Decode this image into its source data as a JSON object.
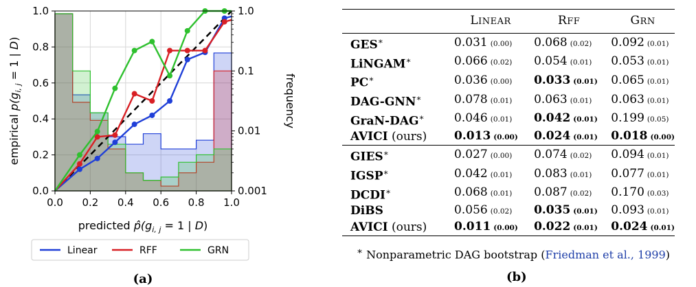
{
  "panel_a": {
    "label": "(a)",
    "legend": [
      {
        "name": "Linear",
        "color": "#1f3fd8"
      },
      {
        "name": "RFF",
        "color": "#d81f24"
      },
      {
        "name": "GRN",
        "color": "#2ec02e"
      }
    ]
  },
  "panel_b": {
    "label": "(b)",
    "columns": [
      "Linear",
      "RFF",
      "Grn"
    ],
    "group1": [
      {
        "method": "GES",
        "mark": "∗",
        "suffix": "",
        "vals": [
          [
            "0.031",
            "(0.00)",
            false
          ],
          [
            "0.068",
            "(0.02)",
            false
          ],
          [
            "0.092",
            "(0.01)",
            false
          ]
        ]
      },
      {
        "method": "LiNGAM",
        "mark": "∗",
        "suffix": "",
        "vals": [
          [
            "0.066",
            "(0.02)",
            false
          ],
          [
            "0.054",
            "(0.01)",
            false
          ],
          [
            "0.053",
            "(0.01)",
            false
          ]
        ]
      },
      {
        "method": "PC",
        "mark": "∗",
        "suffix": "",
        "vals": [
          [
            "0.036",
            "(0.00)",
            false
          ],
          [
            "0.033",
            "(0.01)",
            true
          ],
          [
            "0.065",
            "(0.01)",
            false
          ]
        ]
      },
      {
        "method": "DAG-GNN",
        "mark": "∗",
        "suffix": "",
        "vals": [
          [
            "0.078",
            "(0.01)",
            false
          ],
          [
            "0.063",
            "(0.01)",
            false
          ],
          [
            "0.063",
            "(0.01)",
            false
          ]
        ]
      },
      {
        "method": "GraN-DAG",
        "mark": "∗",
        "suffix": "",
        "vals": [
          [
            "0.046",
            "(0.01)",
            false
          ],
          [
            "0.042",
            "(0.01)",
            true
          ],
          [
            "0.199",
            "(0.05)",
            false
          ]
        ]
      },
      {
        "method": "AVICI",
        "mark": "",
        "suffix": " (ours)",
        "vals": [
          [
            "0.013",
            "(0.00)",
            true
          ],
          [
            "0.024",
            "(0.01)",
            true
          ],
          [
            "0.018",
            "(0.00)",
            true
          ]
        ]
      }
    ],
    "group2": [
      {
        "method": "GIES",
        "mark": "∗",
        "suffix": "",
        "vals": [
          [
            "0.027",
            "(0.00)",
            false
          ],
          [
            "0.074",
            "(0.02)",
            false
          ],
          [
            "0.094",
            "(0.01)",
            false
          ]
        ]
      },
      {
        "method": "IGSP",
        "mark": "∗",
        "suffix": "",
        "vals": [
          [
            "0.042",
            "(0.01)",
            false
          ],
          [
            "0.083",
            "(0.01)",
            false
          ],
          [
            "0.077",
            "(0.01)",
            false
          ]
        ]
      },
      {
        "method": "DCDI",
        "mark": "∗",
        "suffix": "",
        "vals": [
          [
            "0.068",
            "(0.01)",
            false
          ],
          [
            "0.087",
            "(0.02)",
            false
          ],
          [
            "0.170",
            "(0.03)",
            false
          ]
        ]
      },
      {
        "method": "DiBS",
        "mark": "",
        "suffix": "",
        "vals": [
          [
            "0.056",
            "(0.02)",
            false
          ],
          [
            "0.035",
            "(0.01)",
            true
          ],
          [
            "0.093",
            "(0.01)",
            false
          ]
        ]
      },
      {
        "method": "AVICI",
        "mark": "",
        "suffix": " (ours)",
        "vals": [
          [
            "0.011",
            "(0.00)",
            true
          ],
          [
            "0.022",
            "(0.01)",
            true
          ],
          [
            "0.024",
            "(0.01)",
            true
          ]
        ]
      }
    ],
    "footnote_mark": "∗",
    "footnote_text": " Nonparametric DAG bootstrap (",
    "footnote_cite": "Friedman et al., 1999",
    "footnote_end": ")"
  },
  "chart_data": {
    "type": "line",
    "xlabel": "predicted p̂(g_{i,j} = 1 | D)",
    "ylabel": "empirical p(g_{i,j} = 1 | D)",
    "y2label": "frequency",
    "xlim": [
      0.0,
      1.0
    ],
    "ylim": [
      0.0,
      1.0
    ],
    "y2lim": [
      0.001,
      1.0
    ],
    "y2scale": "log",
    "xticks": [
      "0.0",
      "0.2",
      "0.4",
      "0.6",
      "0.8",
      "1.0"
    ],
    "yticks": [
      "0.0",
      "0.2",
      "0.4",
      "0.6",
      "0.8",
      "1.0"
    ],
    "y2ticks": [
      "0.001",
      "0.01",
      "0.1",
      "1.0"
    ],
    "grid": true,
    "legend_position": "below",
    "reference_line": {
      "style": "dashed",
      "color": "#000000",
      "from": [
        0,
        0
      ],
      "to": [
        1,
        1
      ]
    },
    "series": [
      {
        "name": "Linear",
        "color": "#1f3fd8",
        "x": [
          0.0,
          0.14,
          0.24,
          0.34,
          0.45,
          0.55,
          0.65,
          0.75,
          0.85,
          0.96,
          1.0
        ],
        "y": [
          0.0,
          0.12,
          0.18,
          0.27,
          0.37,
          0.42,
          0.5,
          0.73,
          0.77,
          0.96,
          0.97
        ],
        "freq_edges": [
          0.0,
          0.1,
          0.2,
          0.3,
          0.4,
          0.5,
          0.6,
          0.7,
          0.8,
          0.9,
          1.0
        ],
        "freq": [
          0.9,
          0.04,
          0.02,
          0.008,
          0.006,
          0.009,
          0.005,
          0.005,
          0.007,
          0.2
        ]
      },
      {
        "name": "RFF",
        "color": "#d81f24",
        "x": [
          0.0,
          0.14,
          0.24,
          0.34,
          0.45,
          0.55,
          0.65,
          0.75,
          0.85,
          0.96,
          1.0
        ],
        "y": [
          0.0,
          0.15,
          0.3,
          0.31,
          0.54,
          0.5,
          0.78,
          0.78,
          0.78,
          0.94,
          0.95
        ],
        "freq_edges": [
          0.0,
          0.1,
          0.2,
          0.3,
          0.4,
          0.5,
          0.6,
          0.7,
          0.8,
          0.9,
          1.0
        ],
        "freq": [
          0.9,
          0.03,
          0.015,
          0.005,
          0.002,
          0.0015,
          0.0012,
          0.002,
          0.003,
          0.1
        ]
      },
      {
        "name": "GRN",
        "color": "#2ec02e",
        "x": [
          0.0,
          0.14,
          0.24,
          0.34,
          0.45,
          0.55,
          0.65,
          0.75,
          0.85,
          0.96,
          1.0
        ],
        "y": [
          0.0,
          0.2,
          0.33,
          0.57,
          0.78,
          0.83,
          0.64,
          0.89,
          1.0,
          1.0,
          1.0
        ],
        "freq_edges": [
          0.0,
          0.1,
          0.2,
          0.3,
          0.4,
          0.5,
          0.6,
          0.7,
          0.8,
          0.9,
          1.0
        ],
        "freq": [
          0.9,
          0.1,
          0.02,
          0.006,
          0.002,
          0.0015,
          0.0017,
          0.003,
          0.004,
          0.005
        ]
      }
    ]
  }
}
